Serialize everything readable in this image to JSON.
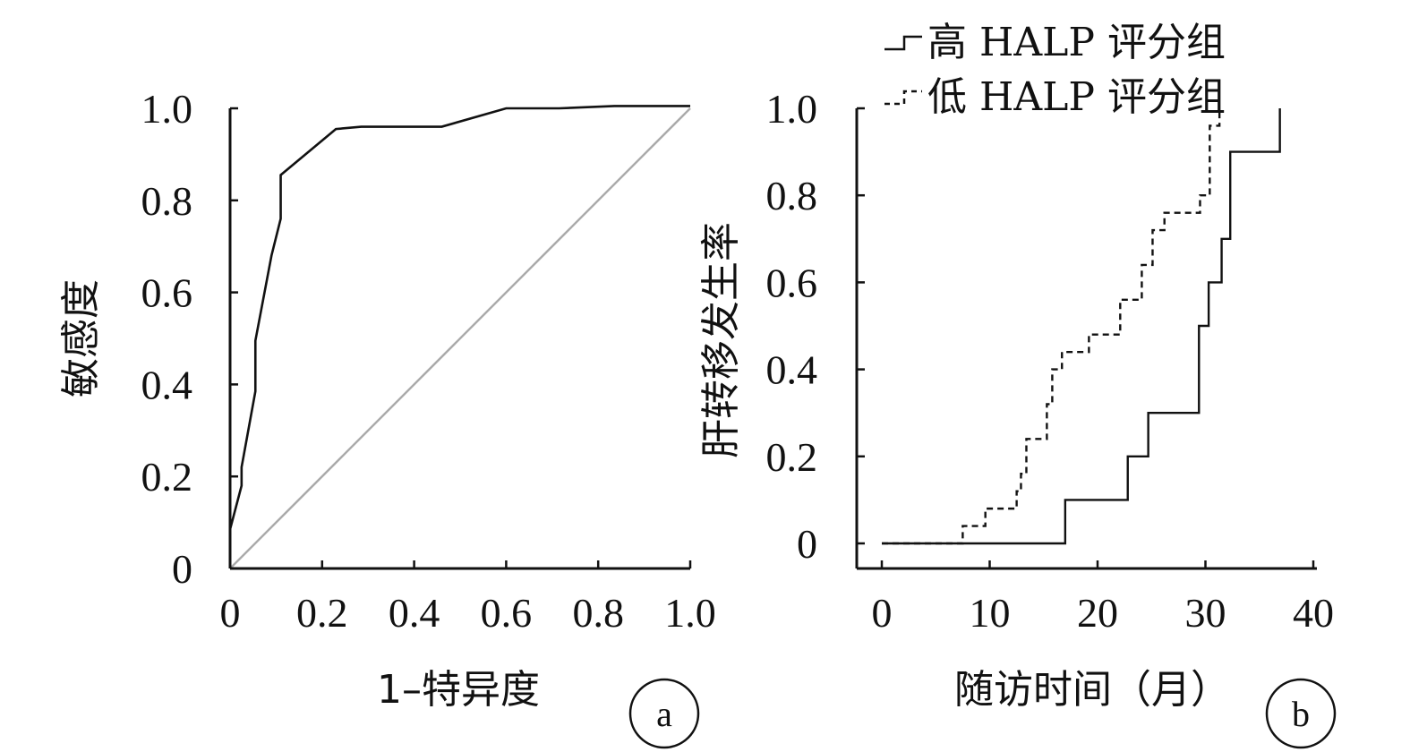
{
  "chart_data": [
    {
      "type": "line",
      "xlabel": "1–特异度",
      "ylabel": "敏感度",
      "xlim": [
        0,
        1.0
      ],
      "ylim": [
        0,
        1.0
      ],
      "x_ticks": [
        "0",
        "0.2",
        "0.4",
        "0.6",
        "0.8",
        "1.0"
      ],
      "y_ticks": [
        "0",
        "0.2",
        "0.4",
        "0.6",
        "0.8",
        "1.0"
      ],
      "series": [
        {
          "x": [
            0,
            0.025,
            0.025,
            0.055,
            0.055,
            0.09,
            0.11,
            0.11,
            0.23,
            0.285,
            0.46,
            0.6,
            0.715,
            0.835,
            1.0
          ],
          "y": [
            0.085,
            0.18,
            0.22,
            0.385,
            0.495,
            0.68,
            0.76,
            0.855,
            0.955,
            0.96,
            0.96,
            1.0,
            1.0,
            1.005,
            1.005
          ],
          "color": "#111111",
          "style": "solid"
        },
        {
          "x": [
            0,
            1.0
          ],
          "y": [
            0,
            1.0
          ],
          "color": "#aaaaaa",
          "style": "solid"
        }
      ],
      "panel_label": "a"
    },
    {
      "type": "line",
      "xlabel": "随访时间（月）",
      "ylabel": "肝转移发生率",
      "xlim": [
        0,
        40
      ],
      "ylim": [
        0,
        1.0
      ],
      "x_ticks": [
        "0",
        "10",
        "20",
        "30",
        "40"
      ],
      "y_ticks": [
        "0",
        "0.2",
        "0.4",
        "0.6",
        "0.8",
        "1.0"
      ],
      "legend_position": "top",
      "series": [
        {
          "name": "高 HALP 评分组",
          "step": true,
          "x": [
            0,
            17,
            22.8,
            24.7,
            29.4,
            30.3,
            31.5,
            32.3,
            36.9
          ],
          "y": [
            0,
            0.1,
            0.2,
            0.3,
            0.5,
            0.6,
            0.7,
            0.9,
            1.0
          ],
          "color": "#111111",
          "style": "solid"
        },
        {
          "name": "低 HALP 评分组",
          "step": true,
          "x": [
            0,
            7.5,
            9.6,
            12.5,
            12.9,
            13.4,
            15.3,
            15.8,
            16.7,
            19.2,
            20.2,
            22.1,
            22.5,
            24.1,
            25.1,
            26.2,
            29.5,
            30.4,
            31.3
          ],
          "y": [
            0,
            0.04,
            0.08,
            0.12,
            0.16,
            0.24,
            0.32,
            0.4,
            0.44,
            0.48,
            0.48,
            0.56,
            0.56,
            0.64,
            0.72,
            0.76,
            0.8,
            0.96,
            1.0
          ],
          "color": "#111111",
          "style": "dashed"
        }
      ],
      "panel_label": "b"
    }
  ]
}
